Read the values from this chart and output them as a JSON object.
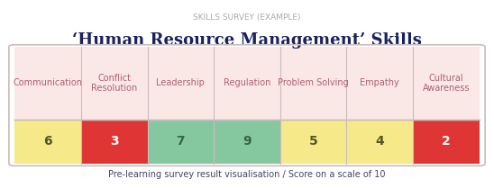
{
  "suptitle": "SKILLS SURVEY (EXAMPLE)",
  "title": "‘Human Resource Management’ Skills",
  "subtitle": "Pre-learning survey result visualisation / Score on a scale of 10",
  "categories": [
    "Communication",
    "Conflict\nResolution",
    "Leadership",
    "Regulation",
    "Problem Solving",
    "Empathy",
    "Cultural\nAwareness"
  ],
  "scores": [
    6,
    3,
    7,
    9,
    5,
    4,
    2
  ],
  "label_bg": "#f9e8e6",
  "score_text_colors": [
    "#555522",
    "#ffffff",
    "#336644",
    "#336644",
    "#555522",
    "#555522",
    "#ffffff"
  ],
  "label_text_color": "#b06070",
  "border_color": "#ccbbbb",
  "suptitle_color": "#aaaaaa",
  "title_color": "#1a2060",
  "subtitle_color": "#444466",
  "score_colors": [
    "#f5e98a",
    "#e03535",
    "#85c8a0",
    "#85c8a0",
    "#f5e98a",
    "#f5e98a",
    "#e03535"
  ]
}
